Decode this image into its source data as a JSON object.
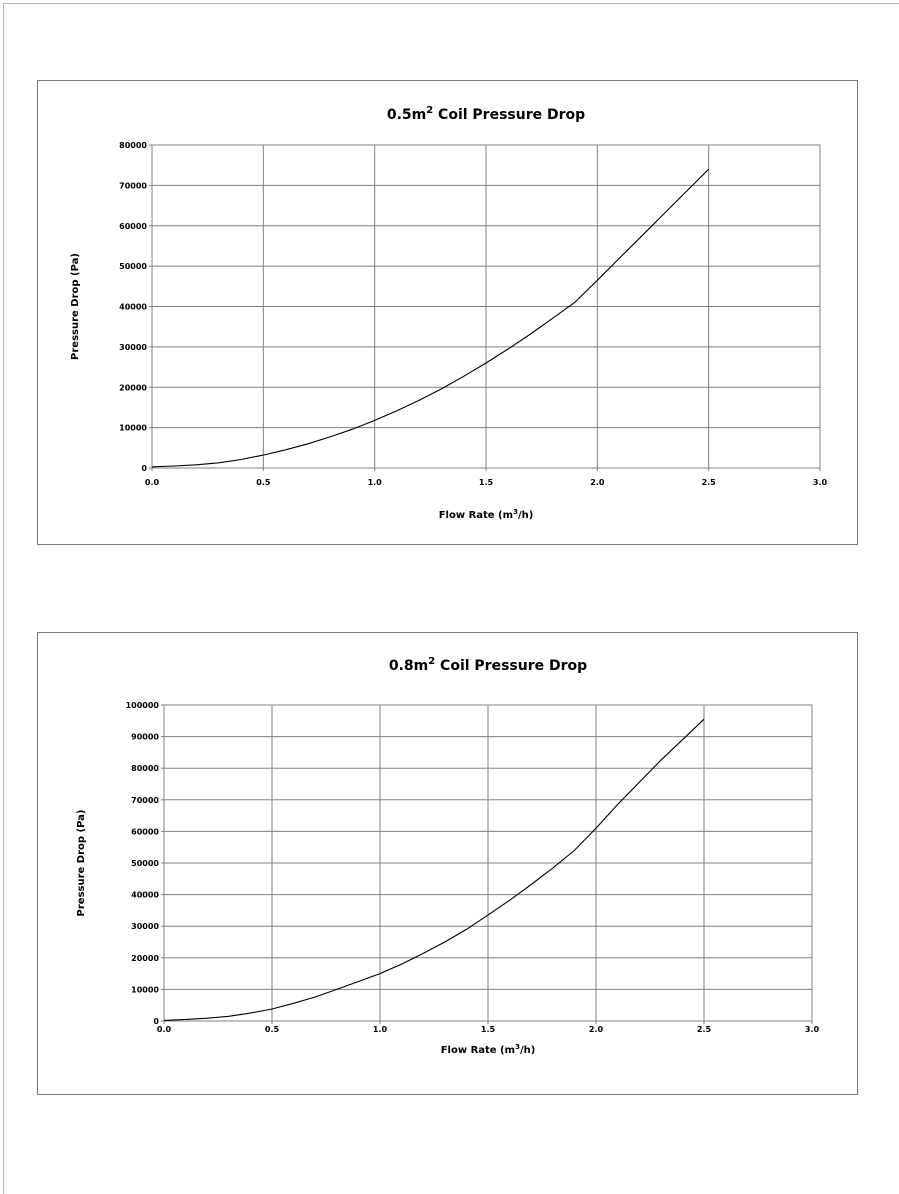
{
  "chart_data": [
    {
      "type": "line",
      "title": "0.5m",
      "title_sup": "2",
      "title_rest": " Coil Pressure Drop",
      "xlabel": "Flow Rate (m",
      "xlabel_sup": "3",
      "xlabel_rest": "/h)",
      "ylabel": "Pressure Drop (Pa)",
      "xlim": [
        0,
        3
      ],
      "ylim": [
        0,
        80000
      ],
      "x_ticks": [
        "0.0",
        "0.5",
        "1.0",
        "1.5",
        "2.0",
        "2.5",
        "3.0"
      ],
      "y_ticks": [
        "0",
        "10000",
        "20000",
        "30000",
        "40000",
        "50000",
        "60000",
        "70000",
        "80000"
      ],
      "grid": true,
      "series": [
        {
          "x": [
            0.0,
            0.1,
            0.2,
            0.3,
            0.4,
            0.5,
            0.6,
            0.7,
            0.8,
            0.9,
            1.0,
            1.1,
            1.2,
            1.3,
            1.4,
            1.5,
            1.6,
            1.7,
            1.8,
            1.9,
            2.0,
            2.1,
            2.2,
            2.3,
            2.4,
            2.5
          ],
          "values": [
            300,
            500,
            800,
            1300,
            2100,
            3200,
            4500,
            6000,
            7700,
            9600,
            11800,
            14200,
            16800,
            19600,
            22700,
            26000,
            29500,
            33200,
            37100,
            41100,
            46500,
            52000,
            57500,
            63000,
            68500,
            74000
          ]
        }
      ]
    },
    {
      "type": "line",
      "title": "0.8m",
      "title_sup": "2",
      "title_rest": " Coil Pressure Drop",
      "xlabel": "Flow Rate (m",
      "xlabel_sup": "3",
      "xlabel_rest": "/h)",
      "ylabel": "Pressure Drop (Pa)",
      "xlim": [
        0,
        3
      ],
      "ylim": [
        0,
        100000
      ],
      "x_ticks": [
        "0.0",
        "0.5",
        "1.0",
        "1.5",
        "2.0",
        "2.5",
        "3.0"
      ],
      "y_ticks": [
        "0",
        "10000",
        "20000",
        "30000",
        "40000",
        "50000",
        "60000",
        "70000",
        "80000",
        "90000",
        "100000"
      ],
      "grid": true,
      "series": [
        {
          "x": [
            0.0,
            0.1,
            0.2,
            0.3,
            0.4,
            0.5,
            0.6,
            0.7,
            0.8,
            0.9,
            1.0,
            1.1,
            1.2,
            1.3,
            1.4,
            1.5,
            1.6,
            1.7,
            1.8,
            1.9,
            2.0,
            2.1,
            2.2,
            2.3,
            2.4,
            2.5
          ],
          "values": [
            200,
            500,
            900,
            1500,
            2500,
            3800,
            5600,
            7600,
            10000,
            12500,
            15000,
            18000,
            21400,
            25000,
            29000,
            33500,
            38200,
            43200,
            48400,
            54000,
            61000,
            68500,
            75500,
            82500,
            89000,
            95500
          ]
        }
      ]
    }
  ]
}
